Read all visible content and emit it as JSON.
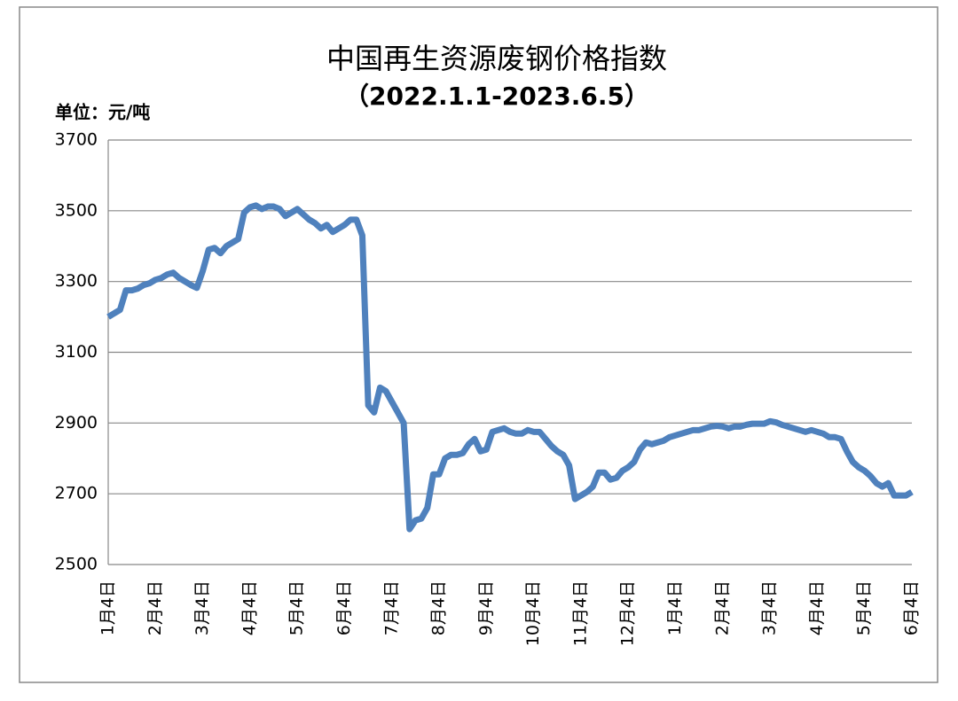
{
  "chart_data": {
    "type": "line",
    "title": "中国再生资源废钢价格指数",
    "subtitle": "（2022.1.1-2023.6.5）",
    "y_unit_label": "单位：元/吨",
    "categories": [
      "1月4日",
      null,
      null,
      null,
      null,
      null,
      null,
      null,
      "2月4日",
      null,
      null,
      null,
      null,
      null,
      null,
      null,
      "3月4日",
      null,
      null,
      null,
      null,
      null,
      null,
      null,
      "4月4日",
      null,
      null,
      null,
      null,
      null,
      null,
      null,
      "5月4日",
      null,
      null,
      null,
      null,
      null,
      null,
      null,
      "6月4日",
      null,
      null,
      null,
      null,
      null,
      null,
      null,
      "7月4日",
      null,
      null,
      null,
      null,
      null,
      null,
      null,
      "8月4日",
      null,
      null,
      null,
      null,
      null,
      null,
      null,
      "9月4日",
      null,
      null,
      null,
      null,
      null,
      null,
      null,
      "10月4日",
      null,
      null,
      null,
      null,
      null,
      null,
      null,
      "11月4日",
      null,
      null,
      null,
      null,
      null,
      null,
      null,
      "12月4日",
      null,
      null,
      null,
      null,
      null,
      null,
      null,
      "1月4日",
      null,
      null,
      null,
      null,
      null,
      null,
      null,
      "2月4日",
      null,
      null,
      null,
      null,
      null,
      null,
      null,
      "3月4日",
      null,
      null,
      null,
      null,
      null,
      null,
      null,
      "4月4日",
      null,
      null,
      null,
      null,
      null,
      null,
      null,
      "5月4日",
      null,
      null,
      null,
      null,
      null,
      null,
      null,
      "6月4日"
    ],
    "series": [
      {
        "color": "#4f81bd",
        "values": [
          3200,
          3210,
          3220,
          3275,
          3275,
          3280,
          3290,
          3295,
          3305,
          3310,
          3320,
          3325,
          3310,
          3300,
          3290,
          3282,
          3330,
          3390,
          3395,
          3380,
          3400,
          3410,
          3420,
          3495,
          3510,
          3515,
          3505,
          3512,
          3512,
          3505,
          3485,
          3495,
          3505,
          3490,
          3475,
          3465,
          3450,
          3460,
          3440,
          3450,
          3460,
          3475,
          3475,
          3430,
          2950,
          2930,
          3000,
          2990,
          2960,
          2930,
          2900,
          2600,
          2625,
          2630,
          2660,
          2755,
          2755,
          2800,
          2810,
          2810,
          2815,
          2840,
          2855,
          2820,
          2825,
          2875,
          2880,
          2885,
          2875,
          2870,
          2870,
          2880,
          2875,
          2875,
          2855,
          2835,
          2820,
          2810,
          2780,
          2685,
          2695,
          2705,
          2720,
          2760,
          2760,
          2740,
          2745,
          2765,
          2775,
          2790,
          2825,
          2845,
          2840,
          2845,
          2850,
          2860,
          2865,
          2870,
          2875,
          2880,
          2880,
          2885,
          2890,
          2892,
          2890,
          2885,
          2890,
          2890,
          2895,
          2898,
          2898,
          2898,
          2905,
          2902,
          2895,
          2890,
          2885,
          2880,
          2875,
          2880,
          2875,
          2870,
          2860,
          2860,
          2855,
          2820,
          2790,
          2775,
          2765,
          2750,
          2730,
          2720,
          2730,
          2695,
          2695,
          2695,
          2705
        ]
      }
    ],
    "ylim": [
      2500,
      3700
    ],
    "yticks": [
      2500,
      2700,
      2900,
      3100,
      3300,
      3500,
      3700
    ],
    "grid": true
  }
}
